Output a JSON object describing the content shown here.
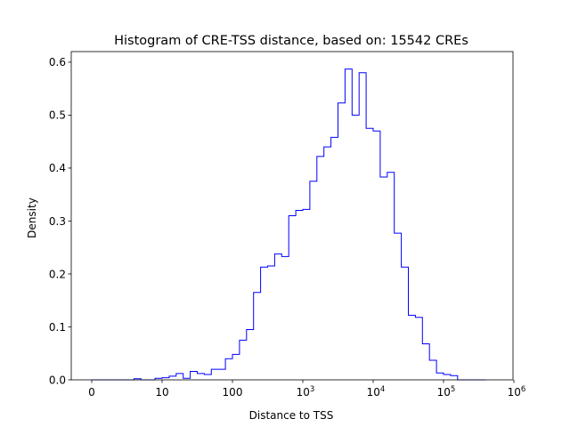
{
  "chart_data": {
    "type": "histogram",
    "title": "Histogram of CRE-TSS distance, based on: 15542 CREs",
    "xlabel": "Distance to TSS",
    "ylabel": "Density",
    "x_scale": "symlog",
    "x_tick_labels": [
      {
        "value": 0,
        "base": "0",
        "exp": ""
      },
      {
        "value": 10,
        "base": "10",
        "exp": ""
      },
      {
        "value": 100,
        "base": "100",
        "exp": ""
      },
      {
        "value": 1000,
        "base": "10",
        "exp": "3"
      },
      {
        "value": 10000,
        "base": "10",
        "exp": "4"
      },
      {
        "value": 100000,
        "base": "10",
        "exp": "5"
      },
      {
        "value": 1000000,
        "base": "10",
        "exp": "6"
      }
    ],
    "y_ticks": [
      "0.0",
      "0.1",
      "0.2",
      "0.3",
      "0.4",
      "0.5",
      "0.6"
    ],
    "ylim": [
      0,
      0.62
    ],
    "grid": false,
    "line_color": "#0000ff",
    "bin_edges_log10": [
      0,
      0.1,
      0.2,
      0.3,
      0.4,
      0.5,
      0.6,
      0.7,
      0.8,
      0.9,
      1.0,
      1.1,
      1.2,
      1.3,
      1.4,
      1.5,
      1.6,
      1.7,
      1.8,
      1.9,
      2.0,
      2.1,
      2.2,
      2.3,
      2.4,
      2.5,
      2.6,
      2.7,
      2.8,
      2.9,
      3.0,
      3.1,
      3.2,
      3.3,
      3.4,
      3.5,
      3.6,
      3.7,
      3.8,
      3.9,
      4.0,
      4.1,
      4.2,
      4.3,
      4.4,
      4.5,
      4.6,
      4.7,
      4.8,
      4.9,
      5.0,
      5.1,
      5.2,
      5.3,
      5.4,
      5.5,
      5.6
    ],
    "density": [
      0.0,
      0.0,
      0.0,
      0.0,
      0.0,
      0.0,
      0.002,
      0.0,
      0.0,
      0.003,
      0.004,
      0.007,
      0.012,
      0.003,
      0.016,
      0.012,
      0.01,
      0.02,
      0.02,
      0.04,
      0.048,
      0.075,
      0.095,
      0.165,
      0.213,
      0.215,
      0.238,
      0.233,
      0.31,
      0.32,
      0.322,
      0.375,
      0.422,
      0.44,
      0.458,
      0.523,
      0.587,
      0.5,
      0.58,
      0.475,
      0.47,
      0.383,
      0.392,
      0.277,
      0.213,
      0.122,
      0.118,
      0.068,
      0.037,
      0.013,
      0.01,
      0.008,
      0.0,
      0.0,
      0.0,
      0.0
    ]
  }
}
